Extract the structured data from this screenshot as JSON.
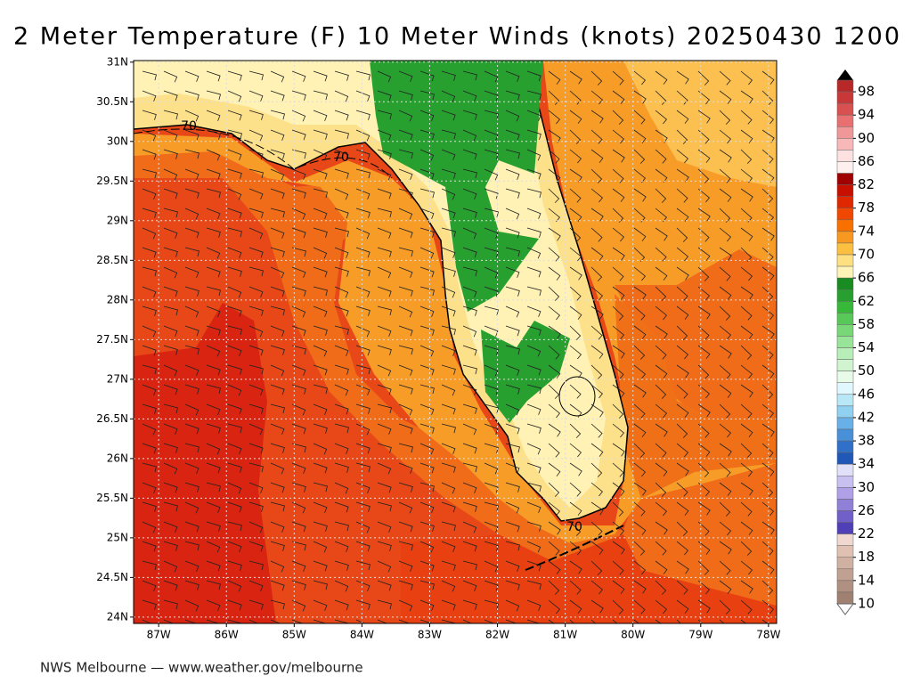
{
  "title": "2 Meter Temperature (F) 10 Meter Winds (knots) 20250430 1200",
  "map": {
    "xlim": [
      -87.37,
      -77.88
    ],
    "ylim": [
      23.92,
      31.02
    ],
    "yticks": [
      {
        "value": 31,
        "label": "31N"
      },
      {
        "value": 30.5,
        "label": "30.5N"
      },
      {
        "value": 30,
        "label": "30N"
      },
      {
        "value": 29.5,
        "label": "29.5N"
      },
      {
        "value": 29,
        "label": "29N"
      },
      {
        "value": 28.5,
        "label": "28.5N"
      },
      {
        "value": 28,
        "label": "28N"
      },
      {
        "value": 27.5,
        "label": "27.5N"
      },
      {
        "value": 27,
        "label": "27N"
      },
      {
        "value": 26.5,
        "label": "26.5N"
      },
      {
        "value": 26,
        "label": "26N"
      },
      {
        "value": 25.5,
        "label": "25.5N"
      },
      {
        "value": 25,
        "label": "25N"
      },
      {
        "value": 24.5,
        "label": "24.5N"
      },
      {
        "value": 24,
        "label": "24N"
      }
    ],
    "xticks": [
      {
        "value": -87,
        "label": "87W"
      },
      {
        "value": -86,
        "label": "86W"
      },
      {
        "value": -85,
        "label": "85W"
      },
      {
        "value": -84,
        "label": "84W"
      },
      {
        "value": -83,
        "label": "83W"
      },
      {
        "value": -82,
        "label": "82W"
      },
      {
        "value": -81,
        "label": "81W"
      },
      {
        "value": -80,
        "label": "80W"
      },
      {
        "value": -79,
        "label": "79W"
      },
      {
        "value": -78,
        "label": "78W"
      }
    ],
    "contour_labels": [
      "70",
      "70",
      "70"
    ]
  },
  "colorbar": {
    "lim": [
      10,
      100
    ],
    "labels": [
      98,
      94,
      90,
      86,
      82,
      78,
      74,
      70,
      66,
      62,
      58,
      54,
      50,
      46,
      42,
      38,
      34,
      30,
      26,
      22,
      18,
      14,
      10
    ],
    "colors": [
      "#b82828",
      "#c83838",
      "#d85050",
      "#e87070",
      "#f09898",
      "#f8b8b8",
      "#fde0e0",
      "#fff0f0",
      "#a00000",
      "#c81000",
      "#e02800",
      "#f04800",
      "#f87000",
      "#f89820",
      "#fcc040",
      "#fee080",
      "#fff4b8",
      "#188c20",
      "#28a030",
      "#38b838",
      "#58c858",
      "#78d878",
      "#98e498",
      "#b8eeb8",
      "#d0f4d0",
      "#e8fae8",
      "#e0f8ff",
      "#b8e8f8",
      "#90d0f0",
      "#68b0e8",
      "#4890d8",
      "#3070c8",
      "#2058b8",
      "#e0e0f8",
      "#c8c0f0",
      "#b0a0e8",
      "#9080d8",
      "#7060c8",
      "#5040b8",
      "#f0d8d0",
      "#e0c0b0",
      "#d0b0a0",
      "#c0a090",
      "#b09080",
      "#a08070"
    ]
  },
  "footer": "NWS Melbourne — www.weather.gov/melbourne"
}
